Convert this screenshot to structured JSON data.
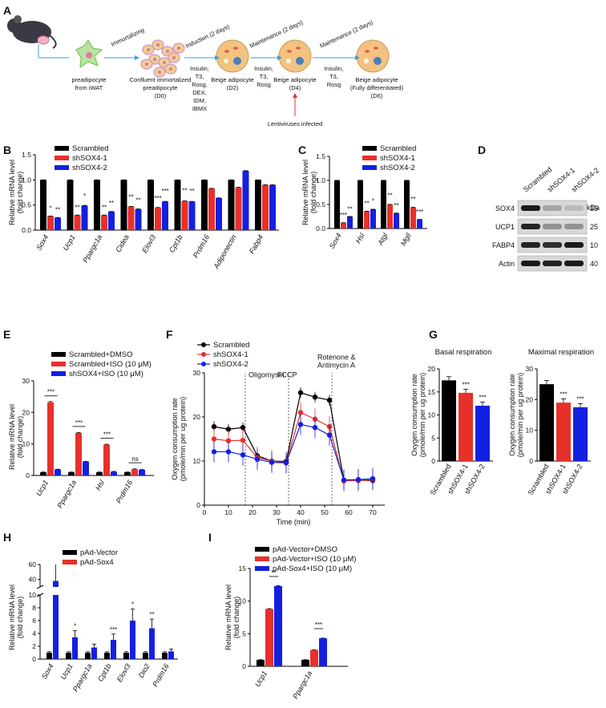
{
  "panel_labels": [
    "A",
    "B",
    "C",
    "D",
    "E",
    "F",
    "G",
    "H",
    "I"
  ],
  "colors": {
    "black": "#000000",
    "red": "#e8302a",
    "blue": "#1420e0"
  },
  "schematic": {
    "steps": [
      {
        "label": "preadipocyte\nfrom iWAT"
      },
      {
        "label": "Confluent immortalized\npreadipocyte\n(D0)"
      },
      {
        "label": "Beige adipocyte\n(D2)"
      },
      {
        "label": "Beige adipocyte\n(D4)"
      },
      {
        "label": "Beige adipocyte\n(Fully differentiated)\n(D6)"
      }
    ],
    "arrows": [
      {
        "top": "Immortalizing",
        "below": ""
      },
      {
        "top": "Induction (2 days)",
        "below": "Insulin,\nT3,\nRosg,\nDEX,\nIDM,\nIBMX"
      },
      {
        "top": "Maintenance (2 days)",
        "below": "Insulin,\nT3,\nRosg"
      },
      {
        "top": "Maintenance (2 days)",
        "below": "Insulin,\nT3,\nRosg"
      }
    ],
    "lenti": "Lentiviruses infected"
  },
  "chart_data": [
    {
      "id": "B",
      "type": "bar",
      "ylabel": "Relative mRNA level\n(fold change)",
      "ylim": [
        0,
        1.5
      ],
      "yticks": [
        "0.0",
        "0.5",
        "1.0",
        "1.5"
      ],
      "legend": [
        "Scrambled",
        "shSOX4-1",
        "shSOX4-2"
      ],
      "categories": [
        "Sox4",
        "Ucp1",
        "Ppargc1a",
        "Cidea",
        "Elovl3",
        "Cpt1b",
        "Prdm16",
        "Adiponectin",
        "Fabp4"
      ],
      "series": [
        {
          "name": "Scrambled",
          "values": [
            1.0,
            1.0,
            1.0,
            1.0,
            1.0,
            1.0,
            1.0,
            1.0,
            1.0
          ]
        },
        {
          "name": "shSOX4-1",
          "values": [
            0.28,
            0.3,
            0.3,
            0.47,
            0.45,
            0.58,
            0.83,
            0.85,
            0.9
          ]
        },
        {
          "name": "shSOX4-2",
          "values": [
            0.25,
            0.49,
            0.37,
            0.42,
            0.57,
            0.57,
            0.64,
            1.18,
            0.9
          ]
        }
      ],
      "sig": [
        [
          "*",
          "**"
        ],
        [
          "**",
          "*"
        ],
        [
          "**",
          "**"
        ],
        [
          "**",
          "**"
        ],
        [
          "***",
          "***"
        ],
        [
          "**",
          "**"
        ],
        [
          "",
          ""
        ],
        [
          "",
          ""
        ],
        [
          "",
          ""
        ]
      ]
    },
    {
      "id": "C",
      "type": "bar",
      "ylabel": "Relative mRNA level\n(fold change)",
      "ylim": [
        0,
        1.5
      ],
      "yticks": [
        "0.0",
        "0.5",
        "1.0",
        "1.5"
      ],
      "legend": [
        "Scrambled",
        "shSOX4-1",
        "shSOX4-2"
      ],
      "categories": [
        "Sox4",
        "Hsl",
        "Atgl",
        "Mgll"
      ],
      "series": [
        {
          "name": "Scrambled",
          "values": [
            1.0,
            1.0,
            1.0,
            1.0
          ]
        },
        {
          "name": "shSOX4-1",
          "values": [
            0.12,
            0.36,
            0.5,
            0.44
          ]
        },
        {
          "name": "shSOX4-2",
          "values": [
            0.25,
            0.4,
            0.32,
            0.19
          ]
        }
      ],
      "sig": [
        [
          "***",
          "**"
        ],
        [
          "**",
          "*"
        ],
        [
          "**",
          "**"
        ],
        [
          "**",
          "***"
        ]
      ]
    },
    {
      "id": "E",
      "type": "bar",
      "ylabel": "Relative mRNA level\n(fold change)",
      "ylim": [
        0,
        30
      ],
      "yticks": [
        "0",
        "10",
        "20",
        "30"
      ],
      "legend": [
        "Scrambled+DMSO",
        "Scrambled+ISO (10 μM)",
        "shSOX4+ISO (10 μM)"
      ],
      "categories": [
        "Ucp1",
        "Ppargc1a",
        "Hsl",
        "Prdm16"
      ],
      "series": [
        {
          "name": "Scrambled+DMSO",
          "values": [
            1,
            1,
            1,
            1
          ]
        },
        {
          "name": "Scrambled+ISO (10 μM)",
          "values": [
            23.2,
            13.5,
            9.8,
            2.0
          ]
        },
        {
          "name": "shSOX4+ISO (10 μM)",
          "values": [
            1.9,
            4.4,
            1.2,
            1.8
          ]
        }
      ],
      "sig": [
        "***",
        "***",
        "***",
        "ns"
      ]
    },
    {
      "id": "F",
      "type": "line",
      "xlabel": "Time (min)",
      "ylabel": "Oxygen consumption rate\n(pmole/min per ug protein)",
      "xlim": [
        0,
        75
      ],
      "ylim": [
        0,
        30
      ],
      "xticks": [
        "0",
        "10",
        "20",
        "30",
        "40",
        "50",
        "60",
        "70"
      ],
      "yticks": [
        "0",
        "10",
        "20",
        "30"
      ],
      "x": [
        4,
        10,
        16,
        22,
        28,
        34,
        40,
        46,
        52,
        58,
        64,
        70
      ],
      "series": [
        {
          "name": "Scrambled",
          "values": [
            17.8,
            17.2,
            17.6,
            11.2,
            10.0,
            9.9,
            25.5,
            24.5,
            23.8,
            5.6,
            5.6,
            5.6
          ]
        },
        {
          "name": "shSOX4-1",
          "values": [
            15.0,
            14.6,
            14.7,
            10.8,
            10.0,
            9.6,
            21.0,
            19.5,
            17.8,
            5.5,
            5.6,
            5.8
          ]
        },
        {
          "name": "shSOX4-2",
          "values": [
            12.1,
            12.1,
            11.4,
            10.4,
            9.7,
            9.6,
            18.3,
            17.6,
            15.9,
            5.7,
            5.8,
            6.0
          ]
        }
      ],
      "vlines": [
        17,
        35,
        53
      ],
      "annotations": [
        "Oligomysin",
        "FCCP",
        "Rotenone &\nAntimycin A"
      ]
    },
    {
      "id": "G1",
      "type": "bar",
      "title": "Basal respiration",
      "ylabel": "Oxygen consumption rate\n(pmole/min per ug protein)",
      "ylim": [
        0,
        20
      ],
      "yticks": [
        "0",
        "5",
        "10",
        "15",
        "20"
      ],
      "categories": [
        "Scrambled",
        "shSOX4-1",
        "shSOX4-2"
      ],
      "values": [
        17.5,
        14.8,
        12.0
      ],
      "sig": [
        "",
        "***",
        "***"
      ]
    },
    {
      "id": "G2",
      "type": "bar",
      "title": "Maximal respiration",
      "ylabel": "Oxygen consumption rate\n(pmole/min per ug protein)",
      "ylim": [
        0,
        30
      ],
      "yticks": [
        "0",
        "10",
        "20",
        "30"
      ],
      "categories": [
        "Scrambled",
        "shSOX4-1",
        "shSOX4-2"
      ],
      "values": [
        25.0,
        19.0,
        17.5
      ],
      "sig": [
        "",
        "***",
        "***"
      ]
    },
    {
      "id": "H",
      "type": "bar",
      "ylabel": "Relative mRNA level\n(fold change)",
      "yticks": [
        "0",
        "2",
        "4",
        "6",
        "8",
        "10",
        "40",
        "60"
      ],
      "legend": [
        "pAd-Vector",
        "pAd-Sox4"
      ],
      "categories": [
        "Sox4",
        "Ucp1",
        "Ppargc1a",
        "Cpt1b",
        "Elovl3",
        "Dio2",
        "Prdm16"
      ],
      "series": [
        {
          "name": "pAd-Vector",
          "values": [
            1,
            1,
            1,
            1,
            1,
            1,
            1
          ]
        },
        {
          "name": "pAd-Sox4",
          "values": [
            38,
            3.4,
            1.8,
            3.0,
            6.0,
            4.8,
            1.2
          ]
        }
      ],
      "sig": [
        "",
        "*",
        "",
        "***",
        "*",
        "**",
        ""
      ]
    },
    {
      "id": "I",
      "type": "bar",
      "ylabel": "Relative mRNA level\n(fold change)",
      "ylim": [
        0,
        15
      ],
      "yticks": [
        "0",
        "5",
        "10",
        "15"
      ],
      "legend": [
        "pAd-Vector+DMSO",
        "pAd-Vector+ISO (10 μM)",
        "pAd-Sox4+ISO (10 μM)"
      ],
      "categories": [
        "Ucp1",
        "Ppargc1a"
      ],
      "series": [
        {
          "name": "pAd-Vector+DMSO",
          "values": [
            1,
            1
          ]
        },
        {
          "name": "pAd-Vector+ISO (10 μM)",
          "values": [
            8.8,
            2.5
          ]
        },
        {
          "name": "pAd-Sox4+ISO (10 μM)",
          "values": [
            12.3,
            4.3
          ]
        }
      ],
      "sig": [
        "**",
        "***"
      ]
    }
  ],
  "western": {
    "columns": [
      "Scrambled",
      "shSOX4-1",
      "shSOX4-2"
    ],
    "kda": "kDa",
    "rows": [
      {
        "protein": "SOX4",
        "marker": "35"
      },
      {
        "protein": "UCP1",
        "marker": "25"
      },
      {
        "protein": "FABP4",
        "marker": "10"
      },
      {
        "protein": "Actin",
        "marker": "40"
      }
    ]
  }
}
